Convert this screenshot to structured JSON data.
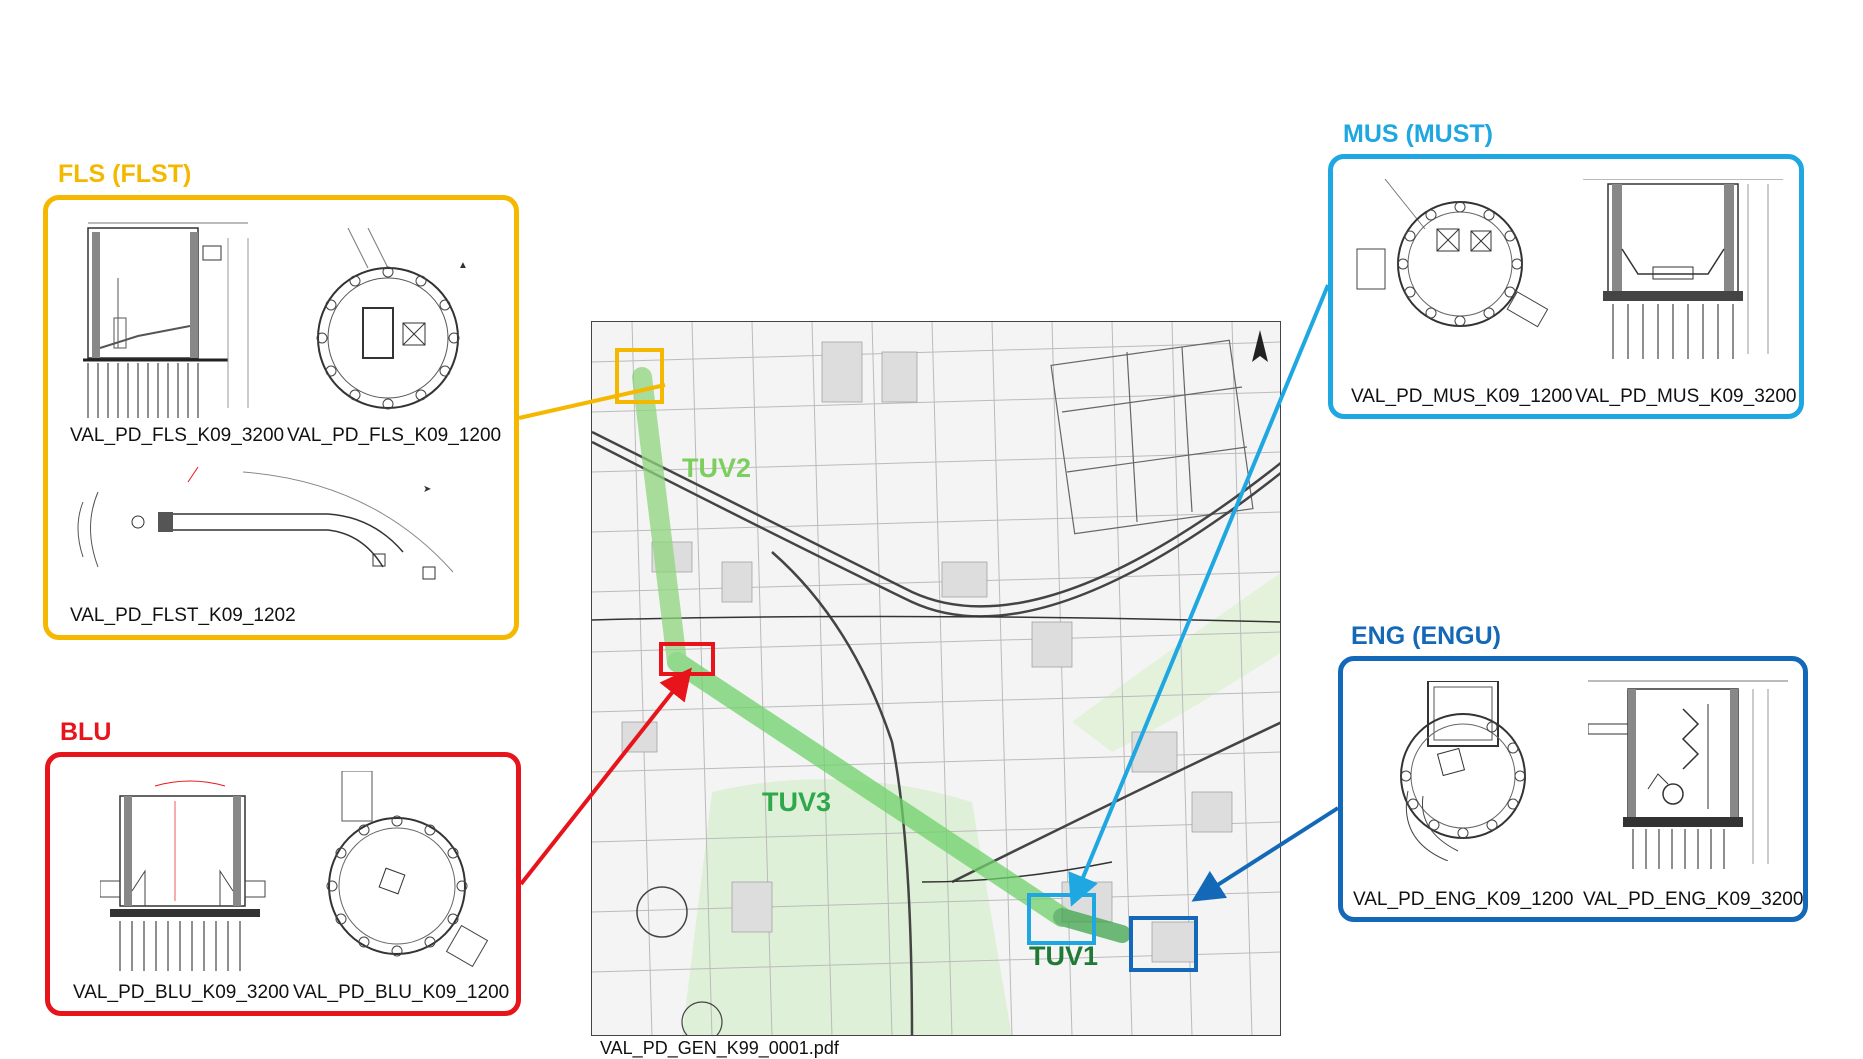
{
  "colors": {
    "fls": "#f5b800",
    "blu": "#e8141b",
    "mus": "#1fa7e1",
    "eng": "#1468b8",
    "tuv_light": "#7ccf5e",
    "tuv_dark": "#1f7a36",
    "route": "#6fd16b"
  },
  "groups": {
    "fls": {
      "title": "FLS (FLST)",
      "drawings": [
        "VAL_PD_FLS_K09_3200",
        "VAL_PD_FLS_K09_1200",
        "VAL_PD_FLST_K09_1202"
      ]
    },
    "blu": {
      "title": "BLU",
      "drawings": [
        "VAL_PD_BLU_K09_3200",
        "VAL_PD_BLU_K09_1200"
      ]
    },
    "mus": {
      "title": "MUS (MUST)",
      "drawings": [
        "VAL_PD_MUS_K09_1200",
        "VAL_PD_MUS_K09_3200"
      ]
    },
    "eng": {
      "title": "ENG (ENGU)",
      "drawings": [
        "VAL_PD_ENG_K09_1200",
        "VAL_PD_ENG_K09_3200"
      ]
    }
  },
  "map": {
    "caption": "VAL_PD_GEN_K99_0001.pdf",
    "tunnels": [
      "TUV2",
      "TUV3",
      "TUV1"
    ]
  }
}
